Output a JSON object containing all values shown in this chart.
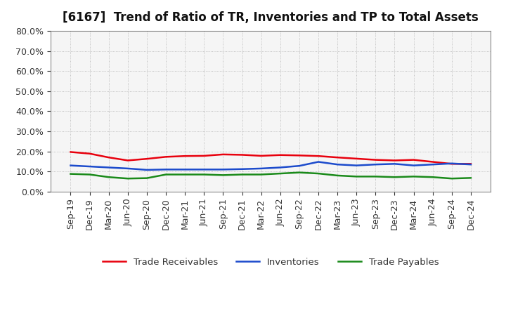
{
  "title": "[6167]  Trend of Ratio of TR, Inventories and TP to Total Assets",
  "x_labels": [
    "Sep-19",
    "Dec-19",
    "Mar-20",
    "Jun-20",
    "Sep-20",
    "Dec-20",
    "Mar-21",
    "Jun-21",
    "Sep-21",
    "Dec-21",
    "Mar-22",
    "Jun-22",
    "Sep-22",
    "Dec-22",
    "Mar-23",
    "Jun-23",
    "Sep-23",
    "Dec-23",
    "Mar-24",
    "Jun-24",
    "Sep-24",
    "Dec-24"
  ],
  "trade_receivables": [
    0.197,
    0.189,
    0.17,
    0.155,
    0.163,
    0.173,
    0.177,
    0.178,
    0.185,
    0.183,
    0.178,
    0.182,
    0.18,
    0.177,
    0.17,
    0.164,
    0.158,
    0.155,
    0.158,
    0.148,
    0.138,
    0.138
  ],
  "inventories": [
    0.13,
    0.125,
    0.12,
    0.115,
    0.108,
    0.11,
    0.11,
    0.11,
    0.11,
    0.112,
    0.115,
    0.12,
    0.128,
    0.148,
    0.135,
    0.13,
    0.135,
    0.138,
    0.13,
    0.135,
    0.14,
    0.135
  ],
  "trade_payables": [
    0.088,
    0.085,
    0.072,
    0.065,
    0.067,
    0.085,
    0.085,
    0.085,
    0.082,
    0.085,
    0.085,
    0.09,
    0.095,
    0.09,
    0.08,
    0.075,
    0.075,
    0.072,
    0.075,
    0.072,
    0.065,
    0.068
  ],
  "ylim": [
    0.0,
    0.8
  ],
  "yticks": [
    0.0,
    0.1,
    0.2,
    0.3,
    0.4,
    0.5,
    0.6,
    0.7,
    0.8
  ],
  "color_tr": "#e8000d",
  "color_inv": "#1c4bcc",
  "color_tp": "#1a8a1a",
  "background_color": "#ffffff",
  "plot_bg_color": "#f5f5f5",
  "grid_color": "#aaaaaa",
  "legend_labels": [
    "Trade Receivables",
    "Inventories",
    "Trade Payables"
  ],
  "title_fontsize": 12,
  "tick_fontsize": 9,
  "line_width": 1.8
}
